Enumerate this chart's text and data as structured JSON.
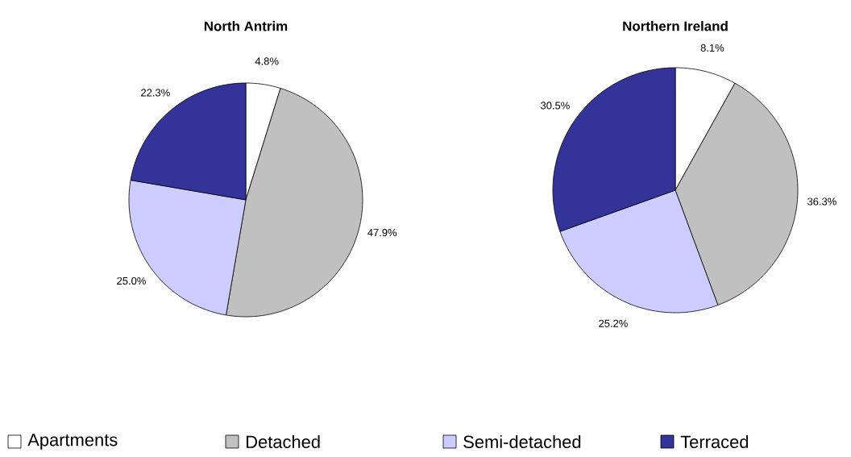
{
  "chart_data": [
    {
      "type": "pie",
      "title": "North Antrim",
      "categories": [
        "Apartments",
        "Detached",
        "Semi-detached",
        "Terraced"
      ],
      "values": [
        4.8,
        47.9,
        25.0,
        22.3
      ],
      "value_labels": [
        "4.8%",
        "47.9%",
        "25.0%",
        "22.3%"
      ],
      "colors": [
        "#ffffff",
        "#c0c0c0",
        "#ccccff",
        "#333399"
      ],
      "legend": "bottom"
    },
    {
      "type": "pie",
      "title": "Northern Ireland",
      "values": [
        8.1,
        36.3,
        25.2,
        30.5
      ],
      "value_labels": [
        "8.1%",
        "36.3%",
        "25.2%",
        "30.5%"
      ],
      "colors": [
        "#ffffff",
        "#c0c0c0",
        "#ccccff",
        "#333399"
      ]
    }
  ]
}
